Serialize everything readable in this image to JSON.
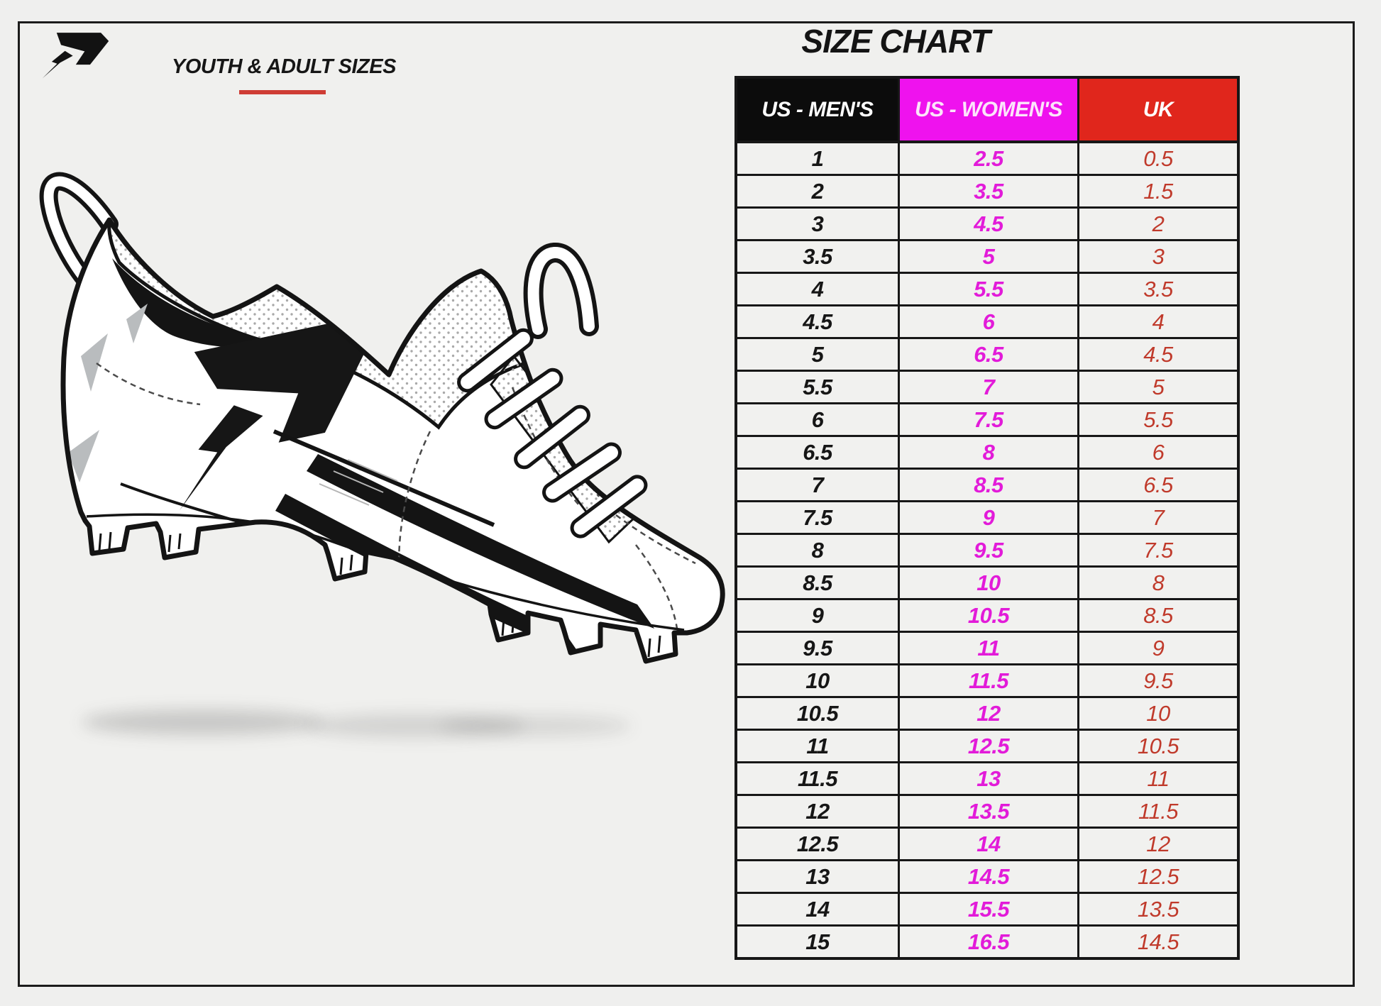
{
  "page": {
    "background": "#efefee",
    "frame_color": "#1b1b1b"
  },
  "brand": {
    "logo": "phenom-logo"
  },
  "header": {
    "subtitle": "YOUTH & ADULT SIZES",
    "underline_color": "#cf3d35",
    "title": "SIZE CHART"
  },
  "illustration": {
    "name": "football-cleat-line-drawing",
    "accent_gray": "#b9bcbe"
  },
  "chart_data": {
    "type": "table",
    "title": "SIZE CHART",
    "columns": [
      {
        "label": "US - MEN'S",
        "header_bg": "#0c0c0c",
        "header_text": "#ffffff",
        "value_color": "#161616"
      },
      {
        "label": "US - WOMEN'S",
        "header_bg": "#ef12ee",
        "header_text": "#fce4fa",
        "value_color": "#e21bd9"
      },
      {
        "label": "UK",
        "header_bg": "#e0261c",
        "header_text": "#ffffff",
        "value_color": "#c03a2b"
      }
    ],
    "rows": [
      [
        "1",
        "2.5",
        "0.5"
      ],
      [
        "2",
        "3.5",
        "1.5"
      ],
      [
        "3",
        "4.5",
        "2"
      ],
      [
        "3.5",
        "5",
        "3"
      ],
      [
        "4",
        "5.5",
        "3.5"
      ],
      [
        "4.5",
        "6",
        "4"
      ],
      [
        "5",
        "6.5",
        "4.5"
      ],
      [
        "5.5",
        "7",
        "5"
      ],
      [
        "6",
        "7.5",
        "5.5"
      ],
      [
        "6.5",
        "8",
        "6"
      ],
      [
        "7",
        "8.5",
        "6.5"
      ],
      [
        "7.5",
        "9",
        "7"
      ],
      [
        "8",
        "9.5",
        "7.5"
      ],
      [
        "8.5",
        "10",
        "8"
      ],
      [
        "9",
        "10.5",
        "8.5"
      ],
      [
        "9.5",
        "11",
        "9"
      ],
      [
        "10",
        "11.5",
        "9.5"
      ],
      [
        "10.5",
        "12",
        "10"
      ],
      [
        "11",
        "12.5",
        "10.5"
      ],
      [
        "11.5",
        "13",
        "11"
      ],
      [
        "12",
        "13.5",
        "11.5"
      ],
      [
        "12.5",
        "14",
        "12"
      ],
      [
        "13",
        "14.5",
        "12.5"
      ],
      [
        "14",
        "15.5",
        "13.5"
      ],
      [
        "15",
        "16.5",
        "14.5"
      ]
    ]
  }
}
